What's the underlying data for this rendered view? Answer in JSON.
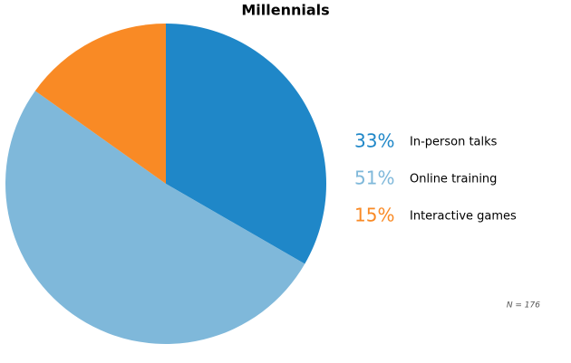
{
  "chart_data": {
    "type": "pie",
    "title": "Millennials",
    "categories": [
      "In-person talks",
      "Online training",
      "Interactive games"
    ],
    "values": [
      33,
      51,
      15
    ],
    "value_labels": [
      "33%",
      "51%",
      "15%"
    ],
    "colors": [
      "#1f87c8",
      "#7fb8da",
      "#f98a25"
    ],
    "note": "N = 176"
  }
}
